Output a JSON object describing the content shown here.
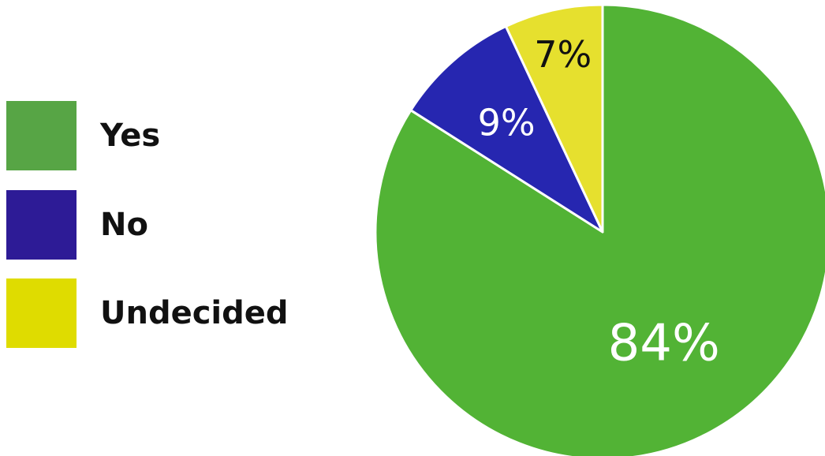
{
  "chart_data": {
    "type": "pie",
    "title": "",
    "categories": [
      "Yes",
      "No",
      "Undecided"
    ],
    "values": [
      84,
      9,
      7
    ],
    "value_labels": [
      "84%",
      "9%",
      "7%"
    ],
    "unit": "%",
    "colors": [
      "#52b335",
      "#2626b0",
      "#e6e02e"
    ],
    "legend_colors": [
      "#57a545",
      "#2d1b96",
      "#dfdc00"
    ],
    "label_colors": [
      "#ffffff",
      "#ffffff",
      "#111111"
    ],
    "start": "top",
    "direction": "clockwise",
    "legend_placement": "left"
  }
}
